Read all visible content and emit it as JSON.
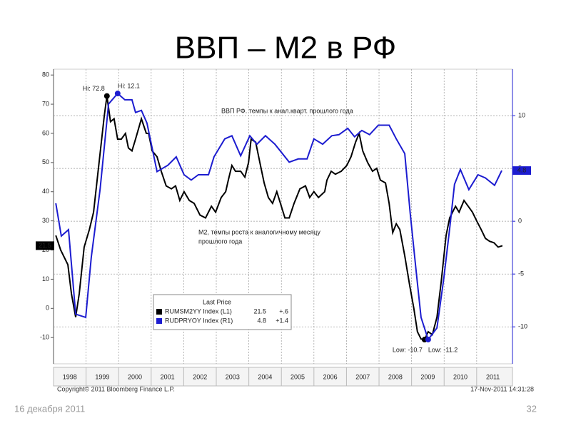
{
  "slide": {
    "title": "ВВП – М2 в РФ",
    "date": "16 декабря 2011",
    "page": "32"
  },
  "chart_data": {
    "type": "line",
    "categories": [
      "1998",
      "1999",
      "2000",
      "2001",
      "2002",
      "2003",
      "2004",
      "2005",
      "2006",
      "2007",
      "2008",
      "2009",
      "2010",
      "2011"
    ],
    "xlim": [
      1998,
      2012.1
    ],
    "ylim": [
      -19,
      82
    ],
    "yticks": [
      -10,
      0,
      10,
      20,
      30,
      40,
      50,
      60,
      70,
      80
    ],
    "y2lim": [
      -13.5,
      14.4
    ],
    "y2ticks": [
      -10,
      -5,
      0,
      5,
      10
    ],
    "grid": true,
    "series": [
      {
        "name": "RUMSM2YY Index (L1)",
        "color": "#000000",
        "axis": "y",
        "change": "+.6",
        "x": [
          1998.07,
          1998.22,
          1998.44,
          1998.55,
          1998.68,
          1998.79,
          1998.94,
          1999.1,
          1999.23,
          1999.38,
          1999.56,
          1999.64,
          1999.75,
          1999.86,
          1999.97,
          2000.08,
          2000.21,
          2000.3,
          2000.41,
          2000.52,
          2000.7,
          2000.85,
          2000.92,
          2001.03,
          2001.18,
          2001.31,
          2001.46,
          2001.62,
          2001.75,
          2001.88,
          2002.01,
          2002.17,
          2002.32,
          2002.5,
          2002.67,
          2002.85,
          2002.98,
          2003.15,
          2003.29,
          2003.37,
          2003.48,
          2003.59,
          2003.75,
          2003.88,
          2003.99,
          2004.07,
          2004.21,
          2004.34,
          2004.47,
          2004.6,
          2004.73,
          2004.86,
          2004.97,
          2005.11,
          2005.24,
          2005.39,
          2005.57,
          2005.74,
          2005.87,
          2006.0,
          2006.14,
          2006.33,
          2006.4,
          2006.53,
          2006.66,
          2006.84,
          2007.01,
          2007.14,
          2007.28,
          2007.39,
          2007.5,
          2007.65,
          2007.8,
          2007.93,
          2008.04,
          2008.2,
          2008.31,
          2008.42,
          2008.53,
          2008.64,
          2008.79,
          2008.94,
          2009.07,
          2009.18,
          2009.29,
          2009.4,
          2009.51,
          2009.64,
          2009.78,
          2009.91,
          2010.06,
          2010.17,
          2010.35,
          2010.46,
          2010.61,
          2010.74,
          2010.87,
          2011.0,
          2011.14,
          2011.27,
          2011.4,
          2011.53,
          2011.66,
          2011.79
        ],
        "values": [
          25,
          20,
          15,
          5,
          -3,
          5,
          21,
          27,
          33,
          48,
          66,
          72.8,
          64,
          65,
          58,
          58,
          60,
          55,
          54,
          58,
          65,
          60,
          60,
          54,
          52,
          47,
          42,
          41,
          42,
          37,
          40,
          37,
          36,
          32,
          31,
          35,
          33,
          38,
          40,
          44,
          49,
          47,
          47,
          45,
          50,
          58,
          57,
          50,
          43,
          38,
          36,
          40,
          36,
          31,
          31,
          36,
          41,
          42,
          38,
          40,
          38,
          40,
          44,
          47,
          46,
          47,
          49,
          52,
          57,
          60,
          54,
          50,
          47,
          48,
          44,
          43,
          36,
          26,
          29,
          27,
          18,
          8,
          0,
          -8,
          -10.5,
          -10.7,
          -8,
          -9,
          -3,
          9,
          25,
          31,
          35,
          33,
          37,
          35,
          33,
          30,
          27,
          24,
          23,
          22.5,
          21,
          21.5
        ]
      },
      {
        "name": "RUDPRYOY Index (R1)",
        "color": "#1c1cd0",
        "axis": "y2",
        "change": "+1.4",
        "x": [
          1998.07,
          1998.24,
          1998.46,
          1998.68,
          1998.99,
          1999.16,
          1999.43,
          1999.69,
          1999.97,
          2000.19,
          2000.41,
          2000.52,
          2000.7,
          2000.87,
          2001.18,
          2001.51,
          2001.77,
          2002.01,
          2002.23,
          2002.45,
          2002.76,
          2002.93,
          2003.26,
          2003.48,
          2003.75,
          2004.03,
          2004.25,
          2004.51,
          2004.8,
          2005.24,
          2005.52,
          2005.79,
          2006.0,
          2006.27,
          2006.55,
          2006.77,
          2007.04,
          2007.25,
          2007.47,
          2007.71,
          2007.98,
          2008.31,
          2008.53,
          2008.79,
          2008.96,
          2009.14,
          2009.29,
          2009.51,
          2009.78,
          2009.99,
          2010.17,
          2010.32,
          2010.5,
          2010.76,
          2011.04,
          2011.27,
          2011.55,
          2011.77
        ],
        "values": [
          1.7,
          -1.4,
          -0.8,
          -8.8,
          -9.1,
          -3.4,
          3.0,
          11.1,
          12.1,
          11.5,
          11.5,
          10.3,
          10.5,
          9.3,
          4.7,
          5.3,
          6.1,
          4.4,
          3.9,
          4.4,
          4.4,
          6.1,
          7.8,
          8.1,
          6.2,
          8.1,
          7.3,
          8.1,
          7.3,
          5.6,
          5.9,
          5.9,
          7.8,
          7.3,
          8.1,
          8.2,
          8.8,
          8.0,
          8.6,
          8.2,
          9.1,
          9.1,
          7.8,
          6.4,
          0.7,
          -4.7,
          -9.1,
          -11.2,
          -10.1,
          -5.4,
          -0.7,
          3.5,
          4.9,
          3.0,
          4.4,
          4.1,
          3.4,
          4.8
        ]
      }
    ],
    "legend_title": "Last Price",
    "annotations": [
      "Hi: 72.8",
      "Hi: 12.1",
      "Low: -10.7",
      "Low: -11.2",
      "ВВП РФ. темпы к анал.кварт. прошлого года",
      "М2, темпы роста к аналогичному месяцу",
      "прошлого года"
    ],
    "source": "Copyright© 2011 Bloomberg Finance L.P.",
    "timestamp": "17-Nov-2011 14:31:28"
  }
}
